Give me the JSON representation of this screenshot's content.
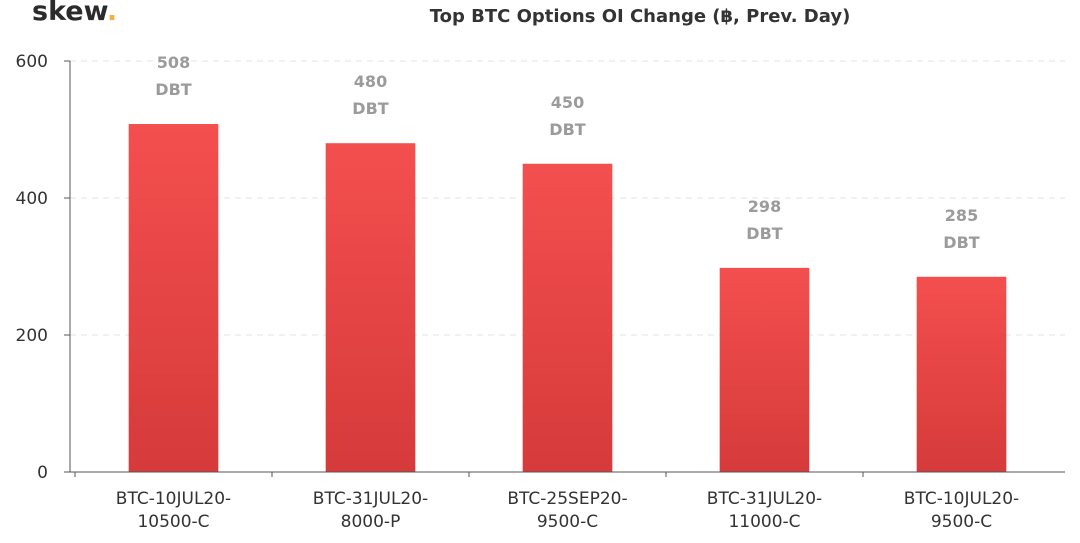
{
  "brand": {
    "logo_text": "skew",
    "logo_dot": "."
  },
  "chart_data": {
    "type": "bar",
    "title": "Top BTC Options OI Change (฿, Prev. Day)",
    "categories": [
      [
        "BTC-10JUL20-",
        "10500-C"
      ],
      [
        "BTC-31JUL20-",
        "8000-P"
      ],
      [
        "BTC-25SEP20-",
        "9500-C"
      ],
      [
        "BTC-31JUL20-",
        "11000-C"
      ],
      [
        "BTC-10JUL20-",
        "9500-C"
      ]
    ],
    "values": [
      508,
      480,
      450,
      298,
      285
    ],
    "value_unit": "DBT",
    "yticks": [
      0,
      200,
      400,
      600
    ],
    "ylim": [
      0,
      600
    ],
    "grid": true,
    "bar_color_top": "#f44f4f",
    "bar_color_bottom": "#d63a3a",
    "label_color": "#9b9b9b",
    "xlabel": "",
    "ylabel": ""
  }
}
